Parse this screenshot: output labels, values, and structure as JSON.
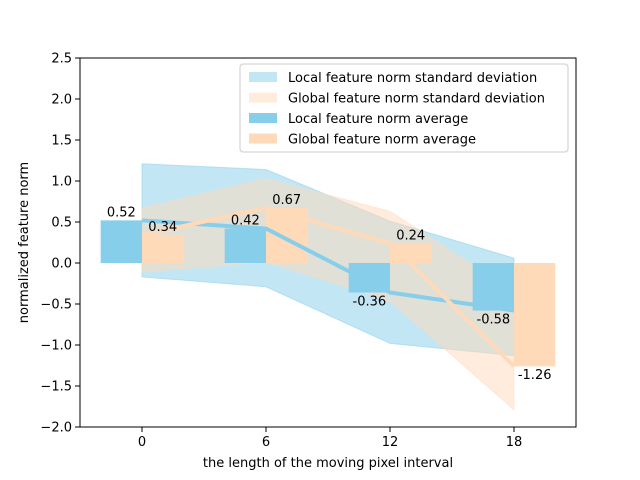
{
  "chart_data": {
    "type": "bar",
    "title": "",
    "xlabel": "the length of the moving pixel interval",
    "ylabel": "normalized feature norm",
    "x": [
      0,
      6,
      12,
      18
    ],
    "xticks": [
      "0",
      "6",
      "12",
      "18"
    ],
    "xlim": [
      -3,
      21
    ],
    "ylim": [
      -2.0,
      2.5
    ],
    "yticks": [
      -2.0,
      -1.5,
      -1.0,
      -0.5,
      0.0,
      0.5,
      1.0,
      1.5,
      2.0,
      2.5
    ],
    "ytick_labels": [
      "−2.0",
      "−1.5",
      "−1.0",
      "−0.5",
      "0.0",
      "0.5",
      "1.0",
      "1.5",
      "2.0",
      "2.5"
    ],
    "grid": false,
    "legend_position": "top-right",
    "bar_width": 2,
    "series": [
      {
        "name": "Local feature norm average",
        "kind": "bar",
        "offset": -1,
        "values": [
          0.52,
          0.42,
          -0.36,
          -0.58
        ],
        "labels": [
          "0.52",
          "0.42",
          "-0.36",
          "-0.58"
        ],
        "color": "#87ceeb"
      },
      {
        "name": "Global feature norm average",
        "kind": "bar",
        "offset": 1,
        "values": [
          0.34,
          0.67,
          0.24,
          -1.26
        ],
        "labels": [
          "0.34",
          "0.67",
          "0.24",
          "-1.26"
        ],
        "color": "#ffdab9"
      }
    ],
    "bands": [
      {
        "name": "Local feature norm standard deviation",
        "x": [
          0,
          6,
          12,
          18
        ],
        "upper": [
          1.21,
          1.14,
          0.51,
          0.06
        ],
        "lower": [
          -0.17,
          -0.29,
          -0.98,
          -1.13
        ],
        "color": "#87ceeb",
        "opacity": 0.5
      },
      {
        "name": "Global feature norm standard deviation",
        "x": [
          0,
          6,
          12,
          18
        ],
        "upper": [
          0.67,
          1.03,
          0.63,
          -0.35
        ],
        "lower": [
          -0.11,
          0.01,
          -0.46,
          -1.79
        ],
        "color": "#ffdab9",
        "opacity": 0.5
      }
    ],
    "lines": [
      {
        "name": "Local feature norm average line",
        "x": [
          0,
          6,
          12,
          18
        ],
        "y": [
          0.52,
          0.42,
          -0.36,
          -0.58
        ],
        "color": "#87ceeb"
      },
      {
        "name": "Global feature norm average line",
        "x": [
          0,
          6,
          12,
          18
        ],
        "y": [
          0.34,
          0.67,
          0.24,
          -1.26
        ],
        "color": "#ffdab9"
      }
    ],
    "legend": [
      {
        "label": "Local feature norm standard deviation",
        "color": "#87ceeb",
        "alpha": 0.5
      },
      {
        "label": "Global feature norm standard deviation",
        "color": "#ffdab9",
        "alpha": 0.5
      },
      {
        "label": "Local feature norm average",
        "color": "#87ceeb",
        "alpha": 1
      },
      {
        "label": "Global feature norm average",
        "color": "#ffdab9",
        "alpha": 1
      }
    ]
  }
}
